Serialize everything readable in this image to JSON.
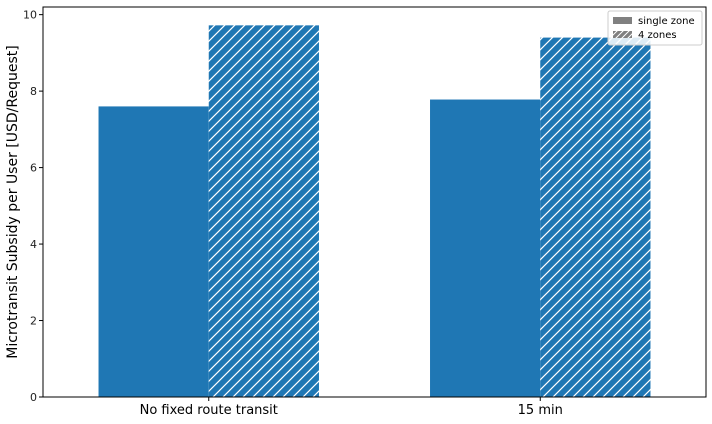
{
  "chart_data": {
    "type": "bar",
    "title": "",
    "xlabel": "",
    "ylabel": "Microtransit Subsidy per User [USD/Request]",
    "categories": [
      "No fixed route transit",
      "15 min"
    ],
    "series": [
      {
        "name": "single zone",
        "values": [
          7.6,
          7.78
        ],
        "pattern": "solid"
      },
      {
        "name": "4 zones",
        "values": [
          9.72,
          9.4
        ],
        "pattern": "hatch"
      }
    ],
    "ylim": [
      0,
      10.2
    ],
    "yticks": [
      0,
      2,
      4,
      6,
      8,
      10
    ],
    "grid": false,
    "legend_position": "top-right",
    "colors": {
      "bar": "#1f77b4",
      "legend_swatch": "#808080",
      "hatch": "#ffffff"
    }
  }
}
